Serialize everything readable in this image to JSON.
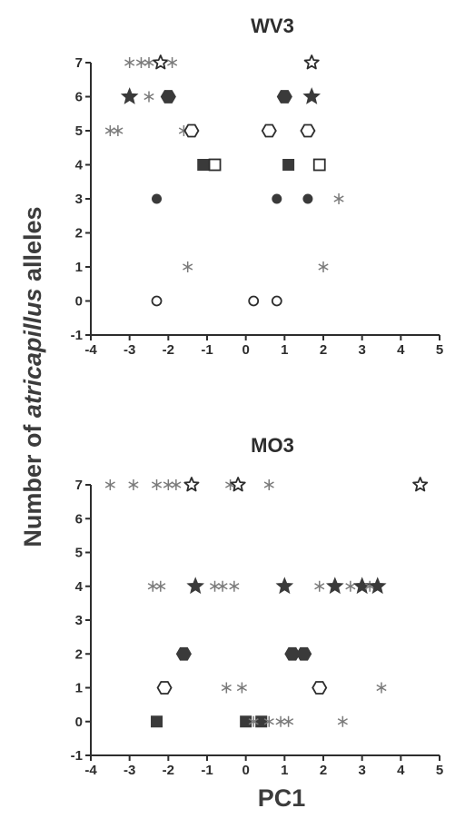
{
  "figure": {
    "ylabel": {
      "pre": "Number of ",
      "em": "atricapillus",
      "post": " alleles"
    },
    "xlabel": "PC1"
  },
  "colors": {
    "ink": "#2d2d2d",
    "filled": "#3a3a3a",
    "star_asterisk": "#7a7a7a"
  },
  "chart_data": [
    {
      "type": "scatter",
      "title": "WV3",
      "xlim": [
        -4,
        5
      ],
      "ylim": [
        -1,
        7
      ],
      "xticks": [
        -4,
        -3,
        -2,
        -1,
        0,
        1,
        2,
        3,
        4,
        5
      ],
      "yticks": [
        -1,
        0,
        1,
        2,
        3,
        4,
        5,
        6,
        7
      ],
      "grid": false,
      "points": [
        {
          "x": -3.0,
          "y": 7,
          "marker": "asterisk"
        },
        {
          "x": -2.7,
          "y": 7,
          "marker": "asterisk"
        },
        {
          "x": -2.5,
          "y": 7,
          "marker": "asterisk"
        },
        {
          "x": -2.2,
          "y": 7,
          "marker": "open-star"
        },
        {
          "x": -1.9,
          "y": 7,
          "marker": "asterisk"
        },
        {
          "x": 1.7,
          "y": 7,
          "marker": "open-star"
        },
        {
          "x": -3.0,
          "y": 6,
          "marker": "filled-star"
        },
        {
          "x": -2.5,
          "y": 6,
          "marker": "asterisk"
        },
        {
          "x": -2.0,
          "y": 6,
          "marker": "filled-hexagon"
        },
        {
          "x": 1.0,
          "y": 6,
          "marker": "filled-hexagon"
        },
        {
          "x": 1.7,
          "y": 6,
          "marker": "filled-star"
        },
        {
          "x": -3.5,
          "y": 5,
          "marker": "asterisk"
        },
        {
          "x": -3.3,
          "y": 5,
          "marker": "asterisk"
        },
        {
          "x": -1.6,
          "y": 5,
          "marker": "asterisk"
        },
        {
          "x": -1.4,
          "y": 5,
          "marker": "open-hexagon"
        },
        {
          "x": 0.6,
          "y": 5,
          "marker": "open-hexagon"
        },
        {
          "x": 1.6,
          "y": 5,
          "marker": "open-hexagon"
        },
        {
          "x": -1.1,
          "y": 4,
          "marker": "filled-square"
        },
        {
          "x": -0.8,
          "y": 4,
          "marker": "open-square"
        },
        {
          "x": 1.1,
          "y": 4,
          "marker": "filled-square"
        },
        {
          "x": 1.9,
          "y": 4,
          "marker": "open-square"
        },
        {
          "x": -2.3,
          "y": 3,
          "marker": "filled-circle"
        },
        {
          "x": 0.8,
          "y": 3,
          "marker": "filled-circle"
        },
        {
          "x": 1.6,
          "y": 3,
          "marker": "filled-circle"
        },
        {
          "x": 2.4,
          "y": 3,
          "marker": "asterisk"
        },
        {
          "x": -1.5,
          "y": 1,
          "marker": "asterisk"
        },
        {
          "x": 2.0,
          "y": 1,
          "marker": "asterisk"
        },
        {
          "x": -2.3,
          "y": 0,
          "marker": "open-circle"
        },
        {
          "x": 0.2,
          "y": 0,
          "marker": "open-circle"
        },
        {
          "x": 0.8,
          "y": 0,
          "marker": "open-circle"
        }
      ]
    },
    {
      "type": "scatter",
      "title": "MO3",
      "xlim": [
        -4,
        5
      ],
      "ylim": [
        -1,
        7
      ],
      "xticks": [
        -4,
        -3,
        -2,
        -1,
        0,
        1,
        2,
        3,
        4,
        5
      ],
      "yticks": [
        -1,
        0,
        1,
        2,
        3,
        4,
        5,
        6,
        7
      ],
      "grid": false,
      "points": [
        {
          "x": -3.5,
          "y": 7,
          "marker": "asterisk"
        },
        {
          "x": -2.9,
          "y": 7,
          "marker": "asterisk"
        },
        {
          "x": -2.3,
          "y": 7,
          "marker": "asterisk"
        },
        {
          "x": -2.0,
          "y": 7,
          "marker": "asterisk"
        },
        {
          "x": -1.8,
          "y": 7,
          "marker": "asterisk"
        },
        {
          "x": -1.4,
          "y": 7,
          "marker": "open-star"
        },
        {
          "x": -0.4,
          "y": 7,
          "marker": "asterisk"
        },
        {
          "x": -0.2,
          "y": 7,
          "marker": "open-star"
        },
        {
          "x": 0.6,
          "y": 7,
          "marker": "asterisk"
        },
        {
          "x": 4.5,
          "y": 7,
          "marker": "open-star"
        },
        {
          "x": -2.4,
          "y": 4,
          "marker": "asterisk"
        },
        {
          "x": -2.2,
          "y": 4,
          "marker": "asterisk"
        },
        {
          "x": -1.3,
          "y": 4,
          "marker": "filled-star"
        },
        {
          "x": -0.8,
          "y": 4,
          "marker": "asterisk"
        },
        {
          "x": -0.6,
          "y": 4,
          "marker": "asterisk"
        },
        {
          "x": -0.3,
          "y": 4,
          "marker": "asterisk"
        },
        {
          "x": 1.0,
          "y": 4,
          "marker": "filled-star"
        },
        {
          "x": 1.9,
          "y": 4,
          "marker": "asterisk"
        },
        {
          "x": 2.3,
          "y": 4,
          "marker": "filled-star"
        },
        {
          "x": 2.7,
          "y": 4,
          "marker": "asterisk"
        },
        {
          "x": 3.0,
          "y": 4,
          "marker": "filled-star"
        },
        {
          "x": 3.2,
          "y": 4,
          "marker": "asterisk"
        },
        {
          "x": 3.4,
          "y": 4,
          "marker": "filled-star"
        },
        {
          "x": -1.6,
          "y": 2,
          "marker": "filled-hexagon"
        },
        {
          "x": 1.2,
          "y": 2,
          "marker": "filled-hexagon"
        },
        {
          "x": 1.5,
          "y": 2,
          "marker": "filled-hexagon"
        },
        {
          "x": -2.1,
          "y": 1,
          "marker": "open-hexagon"
        },
        {
          "x": -0.5,
          "y": 1,
          "marker": "asterisk"
        },
        {
          "x": -0.1,
          "y": 1,
          "marker": "asterisk"
        },
        {
          "x": 1.9,
          "y": 1,
          "marker": "open-hexagon"
        },
        {
          "x": 3.5,
          "y": 1,
          "marker": "asterisk"
        },
        {
          "x": -2.3,
          "y": 0,
          "marker": "filled-square"
        },
        {
          "x": 0.0,
          "y": 0,
          "marker": "filled-square"
        },
        {
          "x": 0.4,
          "y": 0,
          "marker": "filled-square"
        },
        {
          "x": 0.2,
          "y": 0,
          "marker": "asterisk"
        },
        {
          "x": 0.6,
          "y": 0,
          "marker": "asterisk"
        },
        {
          "x": 0.9,
          "y": 0,
          "marker": "asterisk"
        },
        {
          "x": 1.1,
          "y": 0,
          "marker": "asterisk"
        },
        {
          "x": 2.5,
          "y": 0,
          "marker": "asterisk"
        }
      ]
    }
  ]
}
